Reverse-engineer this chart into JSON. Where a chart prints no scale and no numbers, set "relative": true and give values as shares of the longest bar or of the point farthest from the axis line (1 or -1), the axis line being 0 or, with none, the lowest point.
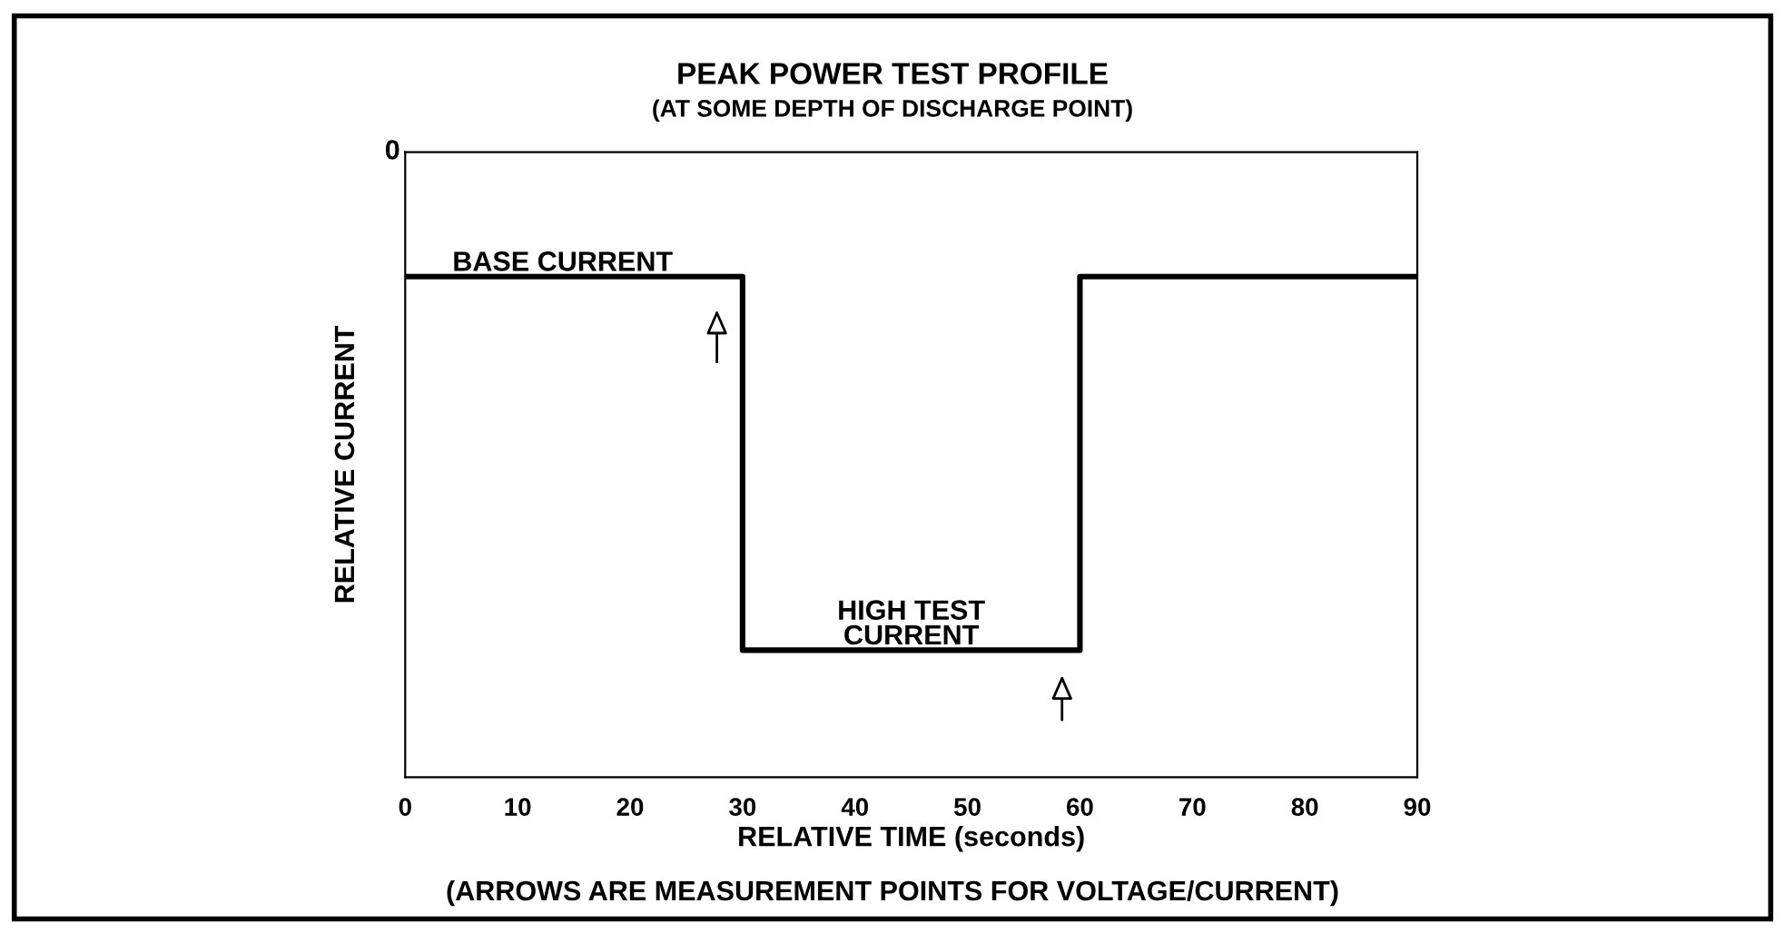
{
  "chart_data": {
    "type": "step",
    "title": "PEAK POWER TEST PROFILE",
    "subtitle": "(AT SOME DEPTH OF DISCHARGE POINT)",
    "xlabel": "RELATIVE TIME (seconds)",
    "ylabel": "RELATIVE CURRENT",
    "relative": true,
    "x": [
      0,
      30,
      60,
      90
    ],
    "values": [
      -0.25,
      -1,
      -0.25,
      -0.25
    ],
    "color": "#000000",
    "xlim": [
      0,
      90
    ],
    "xticks": [
      0,
      10,
      20,
      30,
      40,
      50,
      60,
      70,
      80,
      90
    ],
    "grid": false,
    "tick_labels": "x",
    "annotations": [
      "0",
      {
        "text": "BASE CURRENT",
        "x": 14,
        "y": -0.25
      },
      {
        "text": "HIGH TEST\nCURRENT",
        "x": 45,
        "y": -1
      },
      "(ARROWS ARE MEASUREMENT POINTS FOR VOLTAGE/CURRENT)"
    ]
  }
}
